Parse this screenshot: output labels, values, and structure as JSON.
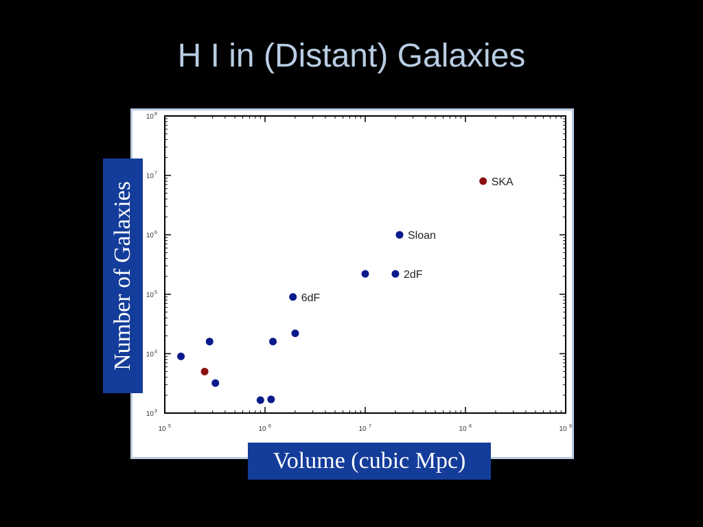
{
  "slide": {
    "title": "H I in (Distant) Galaxies",
    "title_color": "#b9cde3"
  },
  "chart_data": {
    "type": "scatter",
    "title": "",
    "xlabel": "Volume (cubic Mpc)",
    "ylabel": "Number of Galaxies",
    "x_scale": "log",
    "y_scale": "log",
    "xlim": [
      100000,
      1000000000
    ],
    "ylim": [
      1000,
      100000000
    ],
    "x_ticks": [
      {
        "value": 100000,
        "base": "10",
        "exp": "5"
      },
      {
        "value": 1000000,
        "base": "10",
        "exp": "6"
      },
      {
        "value": 10000000,
        "base": "10",
        "exp": "7"
      },
      {
        "value": 100000000,
        "base": "10",
        "exp": "8"
      },
      {
        "value": 1000000000,
        "base": "10",
        "exp": "9"
      }
    ],
    "y_ticks": [
      {
        "value": 1000,
        "base": "10",
        "exp": "3"
      },
      {
        "value": 10000,
        "base": "10",
        "exp": "4"
      },
      {
        "value": 100000,
        "base": "10",
        "exp": "5"
      },
      {
        "value": 1000000,
        "base": "10",
        "exp": "6"
      },
      {
        "value": 10000000,
        "base": "10",
        "exp": "7"
      },
      {
        "value": 100000000,
        "base": "10",
        "exp": "8"
      }
    ],
    "grid": false,
    "colors": {
      "survey": "#0a1a8c",
      "highlight": "#8c1010"
    },
    "points": [
      {
        "x": 145000,
        "y": 9000,
        "label": "",
        "color": "#0a1a8c"
      },
      {
        "x": 250000,
        "y": 5000,
        "label": "",
        "color": "#8c1010"
      },
      {
        "x": 280000,
        "y": 16000,
        "label": "",
        "color": "#0a1a8c"
      },
      {
        "x": 320000,
        "y": 3200,
        "label": "",
        "color": "#0a1a8c"
      },
      {
        "x": 900000,
        "y": 1650,
        "label": "",
        "color": "#0a1a8c"
      },
      {
        "x": 1150000,
        "y": 1700,
        "label": "",
        "color": "#0a1a8c"
      },
      {
        "x": 1200000,
        "y": 16000,
        "label": "",
        "color": "#0a1a8c"
      },
      {
        "x": 1900000,
        "y": 90000,
        "label": "6dF",
        "color": "#0a1a8c"
      },
      {
        "x": 2000000,
        "y": 22000,
        "label": "",
        "color": "#0a1a8c"
      },
      {
        "x": 10000000,
        "y": 220000,
        "label": "",
        "color": "#0a1a8c"
      },
      {
        "x": 20000000,
        "y": 220000,
        "label": "2dF",
        "color": "#0a1a8c"
      },
      {
        "x": 22000000,
        "y": 1000000,
        "label": "Sloan",
        "color": "#0a1a8c"
      },
      {
        "x": 150000000,
        "y": 8000000,
        "label": "SKA",
        "color": "#8c1010"
      }
    ]
  }
}
